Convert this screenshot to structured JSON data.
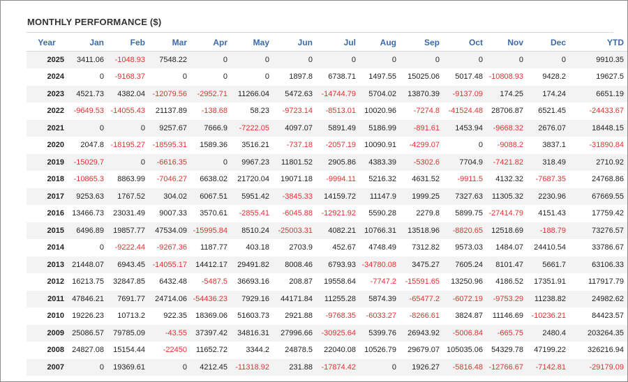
{
  "title": "MONTHLY PERFORMANCE ($)",
  "columns": [
    "Year",
    "Jan",
    "Feb",
    "Mar",
    "Apr",
    "May",
    "Jun",
    "Jul",
    "Aug",
    "Sep",
    "Oct",
    "Nov",
    "Dec",
    "YTD"
  ],
  "colors": {
    "header": "#3b6aa8",
    "negative": "#e53030",
    "positive": "#222222",
    "stripe": "#f3f3f3"
  },
  "rows": [
    [
      "2025",
      "3411.06",
      "-1048.93",
      "7548.22",
      "0",
      "0",
      "0",
      "0",
      "0",
      "0",
      "0",
      "0",
      "0",
      "9910.35"
    ],
    [
      "2024",
      "0",
      "-9168.37",
      "0",
      "0",
      "0",
      "1897.8",
      "6738.71",
      "1497.55",
      "15025.06",
      "5017.48",
      "-10808.93",
      "9428.2",
      "19627.5"
    ],
    [
      "2023",
      "4521.73",
      "4382.04",
      "-12079.56",
      "-2952.71",
      "11266.04",
      "5472.63",
      "-14744.79",
      "5704.02",
      "13870.39",
      "-9137.09",
      "174.25",
      "174.24",
      "6651.19"
    ],
    [
      "2022",
      "-9649.53",
      "-14055.43",
      "21137.89",
      "-138.68",
      "58.23",
      "-9723.14",
      "-8513.01",
      "10020.96",
      "-7274.8",
      "-41524.48",
      "28706.87",
      "6521.45",
      "-24433.67"
    ],
    [
      "2021",
      "0",
      "0",
      "9257.67",
      "7666.9",
      "-7222.05",
      "4097.07",
      "5891.49",
      "5186.99",
      "-891.61",
      "1453.94",
      "-9668.32",
      "2676.07",
      "18448.15"
    ],
    [
      "2020",
      "2047.8",
      "-18195.27",
      "-18595.31",
      "1589.36",
      "3516.21",
      "-737.18",
      "-2057.19",
      "10090.91",
      "-4299.07",
      "0",
      "-9088.2",
      "3837.1",
      "-31890.84"
    ],
    [
      "2019",
      "-15029.7",
      "0",
      "-6616.35",
      "0",
      "9967.23",
      "11801.52",
      "2905.86",
      "4383.39",
      "-5302.6",
      "7704.9",
      "-7421.82",
      "318.49",
      "2710.92"
    ],
    [
      "2018",
      "-10865.3",
      "8863.99",
      "-7046.27",
      "6638.02",
      "21720.04",
      "19071.18",
      "-9994.11",
      "5216.32",
      "4631.52",
      "-9911.5",
      "4132.32",
      "-7687.35",
      "24768.86"
    ],
    [
      "2017",
      "9253.63",
      "1767.52",
      "304.02",
      "6067.51",
      "5951.42",
      "-3845.33",
      "14159.72",
      "11147.9",
      "1999.25",
      "7327.63",
      "11305.32",
      "2230.96",
      "67669.55"
    ],
    [
      "2016",
      "13466.73",
      "23031.49",
      "9007.33",
      "3570.61",
      "-2855.41",
      "-6045.88",
      "-12921.92",
      "5590.28",
      "2279.8",
      "5899.75",
      "-27414.79",
      "4151.43",
      "17759.42"
    ],
    [
      "2015",
      "6496.89",
      "19857.77",
      "47534.09",
      "-15995.84",
      "8510.24",
      "-25003.31",
      "4082.21",
      "10766.31",
      "13518.96",
      "-8820.65",
      "12518.69",
      "-188.79",
      "73276.57"
    ],
    [
      "2014",
      "0",
      "-9222.44",
      "-9267.36",
      "1187.77",
      "403.18",
      "2703.9",
      "452.67",
      "4748.49",
      "7312.82",
      "9573.03",
      "1484.07",
      "24410.54",
      "33786.67"
    ],
    [
      "2013",
      "21448.07",
      "6943.45",
      "-14055.17",
      "14412.17",
      "29491.82",
      "8008.46",
      "6793.93",
      "-34780.08",
      "3475.27",
      "7605.24",
      "8101.47",
      "5661.7",
      "63106.33"
    ],
    [
      "2012",
      "16213.75",
      "32847.85",
      "6432.48",
      "-5487.5",
      "36693.16",
      "208.87",
      "19558.64",
      "-7747.2",
      "-15591.65",
      "13250.96",
      "4186.52",
      "17351.91",
      "117917.79"
    ],
    [
      "2011",
      "47846.21",
      "7691.77",
      "24714.06",
      "-54436.23",
      "7929.16",
      "44171.84",
      "11255.28",
      "5874.39",
      "-65477.2",
      "-6072.19",
      "-9753.29",
      "11238.82",
      "24982.62"
    ],
    [
      "2010",
      "19226.23",
      "10713.2",
      "922.35",
      "18369.06",
      "51603.73",
      "2921.88",
      "-9768.35",
      "-6033.27",
      "-8266.61",
      "3824.87",
      "11146.69",
      "-10236.21",
      "84423.57"
    ],
    [
      "2009",
      "25086.57",
      "79785.09",
      "-43.55",
      "37397.42",
      "34816.31",
      "27996.66",
      "-30925.64",
      "5399.76",
      "26943.92",
      "-5006.84",
      "-665.75",
      "2480.4",
      "203264.35"
    ],
    [
      "2008",
      "24827.08",
      "15154.44",
      "-22450",
      "11652.72",
      "3344.2",
      "24878.5",
      "22040.08",
      "10526.79",
      "29679.07",
      "105035.06",
      "54329.78",
      "47199.22",
      "326216.94"
    ],
    [
      "2007",
      "0",
      "19369.61",
      "0",
      "4212.45",
      "-11318.92",
      "231.88",
      "-17874.42",
      "0",
      "1926.27",
      "-5816.48",
      "-12766.67",
      "-7142.81",
      "-29179.09"
    ]
  ]
}
